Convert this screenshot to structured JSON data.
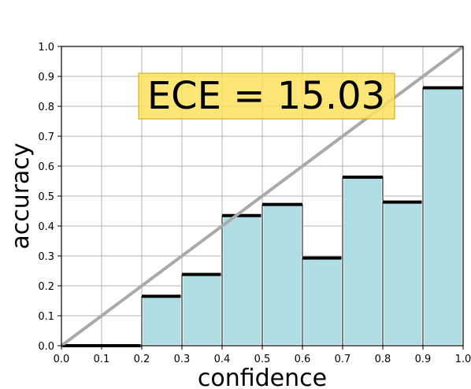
{
  "chart_data": {
    "type": "bar",
    "title": "",
    "xlabel": "confidence",
    "ylabel": "accuracy",
    "xlim": [
      0.0,
      1.0
    ],
    "ylim": [
      0.0,
      1.0
    ],
    "grid": true,
    "x_ticks": [
      "0.0",
      "0.1",
      "0.2",
      "0.3",
      "0.4",
      "0.5",
      "0.6",
      "0.7",
      "0.8",
      "0.9",
      "1.0"
    ],
    "y_ticks": [
      "0.0",
      "0.1",
      "0.2",
      "0.3",
      "0.4",
      "0.5",
      "0.6",
      "0.7",
      "0.8",
      "0.9",
      "1.0"
    ],
    "bins": [
      {
        "start": 0.0,
        "end": 0.1,
        "value": 0.0
      },
      {
        "start": 0.1,
        "end": 0.2,
        "value": 0.0
      },
      {
        "start": 0.2,
        "end": 0.3,
        "value": 0.165
      },
      {
        "start": 0.3,
        "end": 0.4,
        "value": 0.238
      },
      {
        "start": 0.4,
        "end": 0.5,
        "value": 0.435
      },
      {
        "start": 0.5,
        "end": 0.6,
        "value": 0.472
      },
      {
        "start": 0.6,
        "end": 0.7,
        "value": 0.293
      },
      {
        "start": 0.7,
        "end": 0.8,
        "value": 0.563
      },
      {
        "start": 0.8,
        "end": 0.9,
        "value": 0.48
      },
      {
        "start": 0.9,
        "end": 1.0,
        "value": 0.862
      }
    ],
    "reference_line": {
      "from": [
        0.0,
        0.0
      ],
      "to": [
        1.0,
        1.0
      ]
    },
    "annotation": "ECE = 15.03",
    "colors": {
      "bar_fill": "#b0dde4",
      "bar_edge": "#000000",
      "reference_line": "#aaaaaa",
      "annotation_box": "#fde15e",
      "annotation_edge": "#c9a900",
      "grid": "#b0b0b0"
    }
  }
}
